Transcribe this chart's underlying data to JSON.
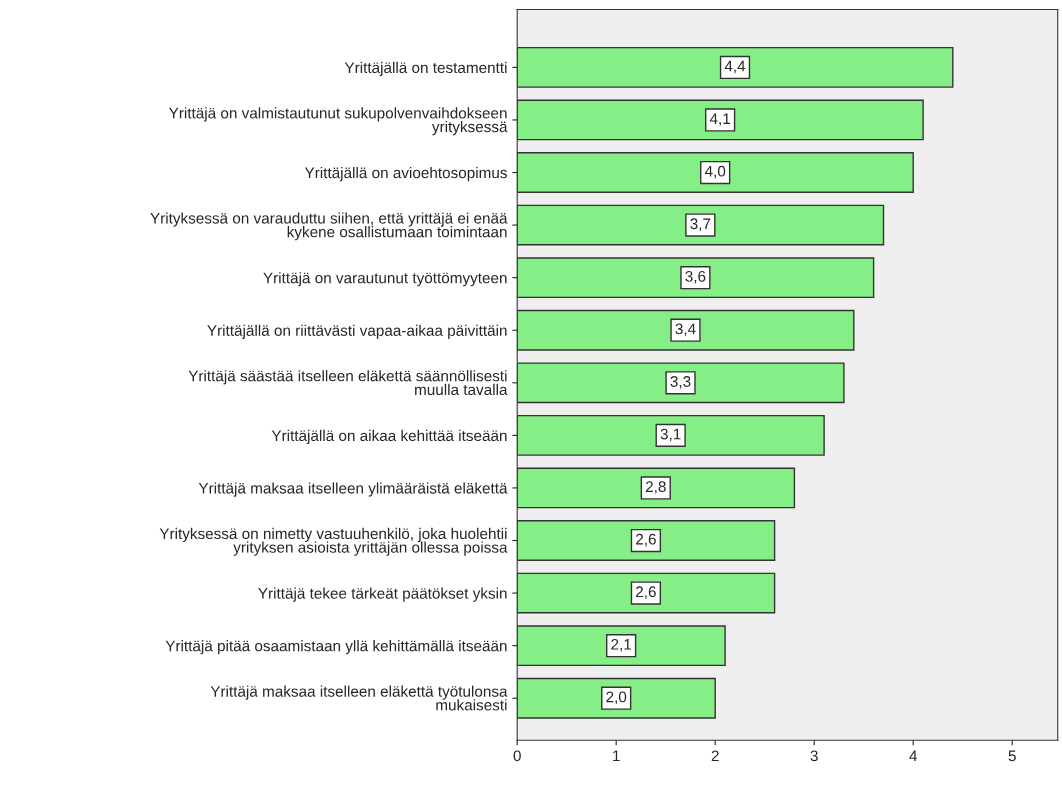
{
  "chart_data": {
    "type": "bar",
    "orientation": "horizontal",
    "categories": [
      "Yrittäjällä on testamentti",
      "Yrittäjä on valmistautunut sukupolvenvaihdokseen\nyrityksessä",
      "Yrittäjällä on avioehtosopimus",
      "Yrityksessä on varauduttu siihen, että yrittäjä ei enää\nkykene osallistumaan toimintaan",
      "Yrittäjä on varautunut työttömyyteen",
      "Yrittäjällä on riittävästi vapaa-aikaa päivittäin",
      "Yrittäjä säästää itselleen eläkettä säännöllisesti\nmuulla tavalla",
      "Yrittäjällä on aikaa kehittää itseään",
      "Yrittäjä maksaa itselleen ylimääräistä eläkettä",
      "Yrityksessä on nimetty vastuuhenkilö, joka huolehtii\nyrityksen asioista yrittäjän ollessa poissa",
      "Yrittäjä tekee tärkeät päätökset yksin",
      "Yrittäjä pitää osaamistaan yllä kehittämällä itseään",
      "Yrittäjä maksaa itselleen eläkettä työtulonsa\nmukaisesti"
    ],
    "values": [
      4.4,
      4.1,
      4.0,
      3.7,
      3.6,
      3.4,
      3.3,
      3.1,
      2.8,
      2.6,
      2.6,
      2.1,
      2.0
    ],
    "value_labels": [
      "4,4",
      "4,1",
      "4,0",
      "3,7",
      "3,6",
      "3,4",
      "3,3",
      "3,1",
      "2,8",
      "2,6",
      "2,6",
      "2,1",
      "2,0"
    ],
    "color": "#86ee86",
    "xlim": [
      0,
      5.46
    ],
    "xticks": [
      0,
      1,
      2,
      3,
      4,
      5
    ],
    "grid": false,
    "legend": false
  }
}
